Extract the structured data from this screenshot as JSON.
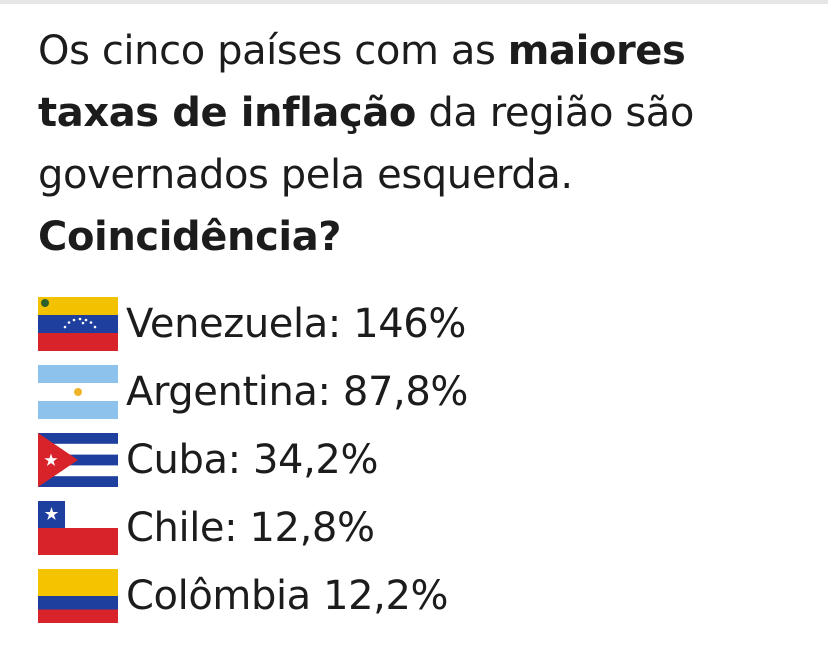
{
  "headline": {
    "part1": "Os cinco países com as ",
    "part1_bold": "maiores taxas de inflação",
    "part2": " da região são governados pela esquerda.",
    "question": "Coincidência?"
  },
  "countries": [
    {
      "label": "Venezuela: 146%",
      "flag": "venezuela-flag-icon",
      "colors": [
        "#f2c200",
        "#1f3f9e",
        "#d8232a"
      ]
    },
    {
      "label": "Argentina: 87,8%",
      "flag": "argentina-flag-icon",
      "colors": [
        "#8cc2ec",
        "#ffffff",
        "#8cc2ec"
      ]
    },
    {
      "label": "Cuba: 34,2%",
      "flag": "cuba-flag-icon",
      "colors": [
        "#1f3f9e",
        "#ffffff",
        "#d8232a"
      ]
    },
    {
      "label": "Chile: 12,8%",
      "flag": "chile-flag-icon",
      "colors": [
        "#1f3f9e",
        "#ffffff",
        "#d8232a"
      ]
    },
    {
      "label": "Colômbia 12,2%",
      "flag": "colombia-flag-icon",
      "colors": [
        "#f5c400",
        "#1f3f9e",
        "#d8232a"
      ]
    }
  ]
}
